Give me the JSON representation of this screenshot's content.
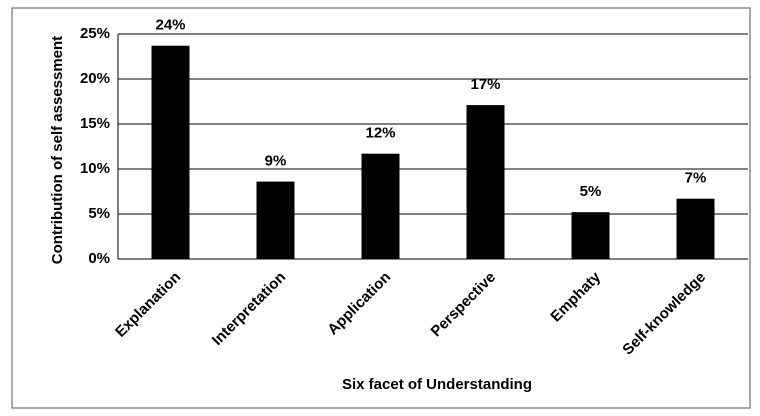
{
  "chart_data": {
    "type": "bar",
    "x_label": "Six facet of Understanding",
    "y_label": "Contribution  of self assessment",
    "categories": [
      "Explanation",
      "Interpretation",
      "Application",
      "Perspective",
      "Emphaty",
      "Self-knowledge"
    ],
    "values": [
      23.7,
      8.6,
      11.7,
      17.1,
      5.2,
      6.7
    ],
    "value_labels": [
      "24%",
      "9%",
      "12%",
      "17%",
      "5%",
      "7%"
    ],
    "color": "#000000",
    "ylim": [
      0,
      25
    ],
    "yticks": [
      {
        "value": 0,
        "label": "0%"
      },
      {
        "value": 5,
        "label": "5%"
      },
      {
        "value": 10,
        "label": "10%"
      },
      {
        "value": 15,
        "label": "15%"
      },
      {
        "value": 20,
        "label": "20%"
      },
      {
        "value": 25,
        "label": "25%"
      }
    ],
    "grid": true
  }
}
